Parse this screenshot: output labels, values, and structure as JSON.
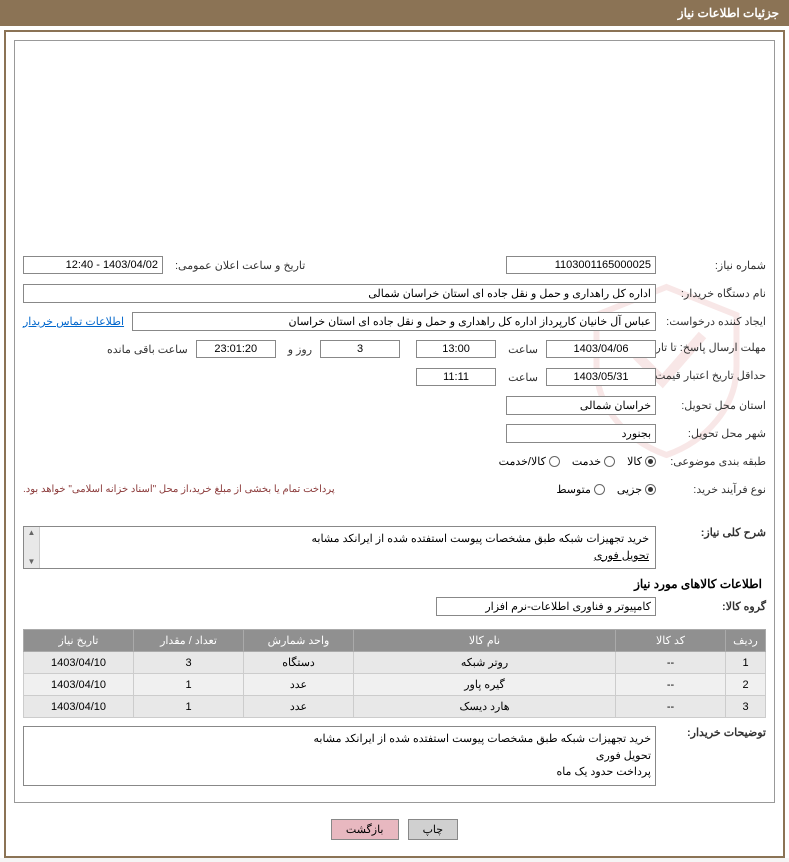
{
  "header": {
    "title": "جزئیات اطلاعات نیاز"
  },
  "labels": {
    "need_no": "شماره نیاز:",
    "announce_datetime": "تاریخ و ساعت اعلان عمومی:",
    "buyer_org": "نام دستگاه خریدار:",
    "requester": "ایجاد کننده درخواست:",
    "contact_link": "اطلاعات تماس خریدار",
    "response_deadline": "مهلت ارسال پاسخ: تا تاریخ:",
    "time_word": "ساعت",
    "days_and": "روز و",
    "remaining": "ساعت باقی مانده",
    "validity_min": "حداقل تاریخ اعتبار قیمت: تا تاریخ:",
    "delivery_province": "استان محل تحویل:",
    "delivery_city": "شهر محل تحویل:",
    "category": "طبقه بندی موضوعی:",
    "process_type": "نوع فرآیند خرید:",
    "payment_note": "پرداخت تمام یا بخشی از مبلغ خرید،از محل \"اسناد خزانه اسلامی\" خواهد بود.",
    "need_desc": "شرح کلی نیاز:",
    "items_section": "اطلاعات کالاهای مورد نیاز",
    "item_group": "گروه کالا:",
    "buyer_notes": "توضیحات خریدار:"
  },
  "fields": {
    "need_no": "1103001165000025",
    "announce_datetime": "1403/04/02 - 12:40",
    "buyer_org": "اداره کل راهداری و حمل و نقل جاده ای استان خراسان شمالی",
    "requester": "عباس آل خانیان کارپرداز اداره کل راهداری و حمل و نقل جاده ای استان خراسان",
    "resp_date": "1403/04/06",
    "resp_time": "13:00",
    "remaining_days": "3",
    "remaining_time": "23:01:20",
    "validity_date": "1403/05/31",
    "validity_time": "11:11",
    "province": "خراسان شمالی",
    "city": "بجنورد",
    "need_desc_l1": "خرید تجهیزات شبکه طبق مشخصات پیوست استفتده شده از ایرانکد مشابه",
    "need_desc_l2": "تحویل  فوری",
    "item_group": "کامپیوتر و فناوری اطلاعات-نرم افزار",
    "notes_l1": "خرید تجهیزات شبکه طبق مشخصات پیوست استفتده شده از ایرانکد مشابه",
    "notes_l2": "تحویل  فوری",
    "notes_l3": "پرداخت حدود یک ماه"
  },
  "radios": {
    "category": [
      {
        "label": "کالا",
        "checked": true
      },
      {
        "label": "خدمت",
        "checked": false
      },
      {
        "label": "کالا/خدمت",
        "checked": false
      }
    ],
    "process": [
      {
        "label": "جزیی",
        "checked": true
      },
      {
        "label": "متوسط",
        "checked": false
      }
    ]
  },
  "table": {
    "headers": [
      "ردیف",
      "کد کالا",
      "نام کالا",
      "واحد شمارش",
      "تعداد / مقدار",
      "تاریخ نیاز"
    ],
    "rows": [
      [
        "1",
        "--",
        "روتر شبکه",
        "دستگاه",
        "3",
        "1403/04/10"
      ],
      [
        "2",
        "--",
        "گیره پاور",
        "عدد",
        "1",
        "1403/04/10"
      ],
      [
        "3",
        "--",
        "هارد دیسک",
        "عدد",
        "1",
        "1403/04/10"
      ]
    ],
    "col_widths": [
      "40px",
      "110px",
      "auto",
      "110px",
      "110px",
      "110px"
    ]
  },
  "buttons": {
    "print": "چاپ",
    "back": "بازگشت"
  },
  "colors": {
    "header_bg": "#8b7355",
    "table_header_bg": "#909090",
    "note_color": "#8b3a3a",
    "link_color": "#0066cc"
  }
}
